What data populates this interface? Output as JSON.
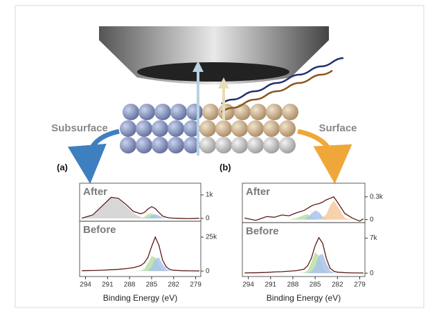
{
  "illustration": {
    "left_label": "Subsurface",
    "right_label": "Surface"
  },
  "chart_data": [
    {
      "type": "line",
      "panel": "(a)",
      "label": "After",
      "x": [
        294.5,
        293,
        291.5,
        290.5,
        289.5,
        288.5,
        287.5,
        286.5,
        286,
        285.5,
        285,
        284.5,
        284,
        283.5,
        283,
        282.5,
        282,
        281,
        280,
        279,
        278.5
      ],
      "xlim": [
        294.8,
        278.3
      ],
      "ylim": [
        -120,
        1500
      ],
      "yticks": [
        {
          "value": 1000,
          "label": "1k"
        },
        0
      ],
      "series": [
        {
          "color": "#d0d0d0",
          "fill": true,
          "values": [
            0,
            120,
            580,
            870,
            800,
            530,
            220,
            60,
            20,
            5,
            0,
            0,
            0,
            0,
            0,
            0,
            0,
            0,
            0,
            0,
            0
          ]
        },
        {
          "color": "#b9dfa6",
          "fill": true,
          "values": [
            0,
            0,
            0,
            0,
            0,
            0,
            0,
            10,
            60,
            180,
            220,
            140,
            40,
            5,
            0,
            0,
            0,
            0,
            0,
            0,
            0
          ]
        },
        {
          "color": "#a9c3ea",
          "fill": true,
          "values": [
            0,
            0,
            0,
            0,
            0,
            0,
            0,
            0,
            0,
            30,
            120,
            180,
            120,
            40,
            10,
            0,
            0,
            0,
            0,
            0,
            0
          ]
        },
        {
          "color": "#5a1a14",
          "fill": false,
          "values": [
            10,
            150,
            600,
            900,
            850,
            600,
            300,
            200,
            250,
            400,
            500,
            420,
            250,
            100,
            50,
            20,
            10,
            0,
            -10,
            0,
            5
          ]
        }
      ]
    },
    {
      "type": "line",
      "label": "Before",
      "xlabel": "Binding Energy (eV)",
      "x": [
        294.5,
        293,
        291.5,
        290.5,
        289.5,
        288.5,
        287.5,
        286.5,
        286,
        285.5,
        285,
        284.5,
        284,
        283.5,
        283,
        282.5,
        282,
        281,
        280,
        279,
        278.5
      ],
      "xlim": [
        294.8,
        278.3
      ],
      "ylim": [
        -4000,
        36700
      ],
      "xticks": [
        294,
        291,
        288,
        285,
        282,
        279
      ],
      "yticks": [
        {
          "value": 25000,
          "label": "25k"
        },
        0
      ],
      "series": [
        {
          "color": "#b9dfa6",
          "fill": true,
          "values": [
            0,
            0,
            0,
            0,
            0,
            0,
            0,
            300,
            1500,
            6000,
            11000,
            10000,
            4000,
            800,
            0,
            0,
            0,
            0,
            0,
            0,
            0
          ]
        },
        {
          "color": "#a9c3ea",
          "fill": true,
          "values": [
            0,
            0,
            0,
            0,
            0,
            0,
            0,
            0,
            0,
            0,
            3000,
            9000,
            10000,
            5000,
            1500,
            300,
            0,
            0,
            0,
            0,
            0
          ]
        },
        {
          "color": "#5a1a14",
          "fill": false,
          "values": [
            300,
            400,
            700,
            1000,
            1300,
            1800,
            2500,
            4000,
            6000,
            10000,
            18000,
            25000,
            19000,
            8000,
            3000,
            1200,
            600,
            300,
            200,
            150,
            100
          ]
        }
      ]
    },
    {
      "type": "line",
      "panel": "(b)",
      "label": "After",
      "x": [
        294.5,
        293,
        291.5,
        290.5,
        289.5,
        288.5,
        287.5,
        286.5,
        286,
        285.5,
        285,
        284.5,
        284,
        283.5,
        283,
        282.5,
        282,
        281,
        280,
        279,
        278.5
      ],
      "xlim": [
        294.8,
        278.3
      ],
      "ylim": [
        -40,
        480
      ],
      "yticks": [
        {
          "value": 300,
          "label": "0.3k"
        },
        0
      ],
      "series": [
        {
          "color": "#b9dfa6",
          "fill": true,
          "values": [
            0,
            0,
            0,
            0,
            0,
            0,
            20,
            60,
            70,
            40,
            10,
            0,
            0,
            0,
            0,
            0,
            0,
            0,
            0,
            0,
            0
          ]
        },
        {
          "color": "#a9c3ea",
          "fill": true,
          "values": [
            0,
            0,
            0,
            0,
            0,
            0,
            0,
            0,
            30,
            80,
            120,
            100,
            40,
            10,
            0,
            0,
            0,
            0,
            0,
            0,
            0
          ]
        },
        {
          "color": "#f6c99c",
          "fill": true,
          "values": [
            0,
            0,
            0,
            0,
            0,
            0,
            0,
            0,
            0,
            0,
            0,
            0,
            20,
            70,
            180,
            250,
            180,
            20,
            0,
            0,
            0
          ]
        },
        {
          "color": "#5a1a14",
          "fill": false,
          "values": [
            20,
            -10,
            40,
            30,
            60,
            50,
            90,
            120,
            150,
            180,
            200,
            210,
            230,
            260,
            280,
            300,
            230,
            80,
            20,
            -20,
            10
          ]
        }
      ]
    },
    {
      "type": "line",
      "label": "Before",
      "xlabel": "Binding Energy (eV)",
      "x": [
        294.5,
        293,
        291.5,
        290.5,
        289.5,
        288.5,
        287.5,
        286.5,
        286,
        285.5,
        285,
        284.5,
        284,
        283.5,
        283,
        282.5,
        282,
        281,
        280,
        279,
        278.5
      ],
      "xlim": [
        294.8,
        278.3
      ],
      "ylim": [
        -670,
        10100
      ],
      "xticks": [
        294,
        291,
        288,
        285,
        282,
        279
      ],
      "yticks": [
        {
          "value": 7000,
          "label": "7k"
        },
        0
      ],
      "series": [
        {
          "color": "#b9dfa6",
          "fill": true,
          "values": [
            0,
            0,
            0,
            0,
            0,
            0,
            0,
            100,
            500,
            2200,
            4200,
            3500,
            1200,
            200,
            0,
            0,
            0,
            0,
            0,
            0,
            0
          ]
        },
        {
          "color": "#a9c3ea",
          "fill": true,
          "values": [
            0,
            0,
            0,
            0,
            0,
            0,
            0,
            0,
            0,
            300,
            1300,
            3500,
            3900,
            2000,
            500,
            100,
            0,
            0,
            0,
            0,
            0
          ]
        },
        {
          "color": "#5a1a14",
          "fill": false,
          "values": [
            50,
            80,
            150,
            250,
            300,
            400,
            500,
            800,
            1500,
            3000,
            5500,
            7100,
            6000,
            3000,
            1000,
            400,
            200,
            100,
            60,
            40,
            30
          ]
        }
      ]
    }
  ]
}
